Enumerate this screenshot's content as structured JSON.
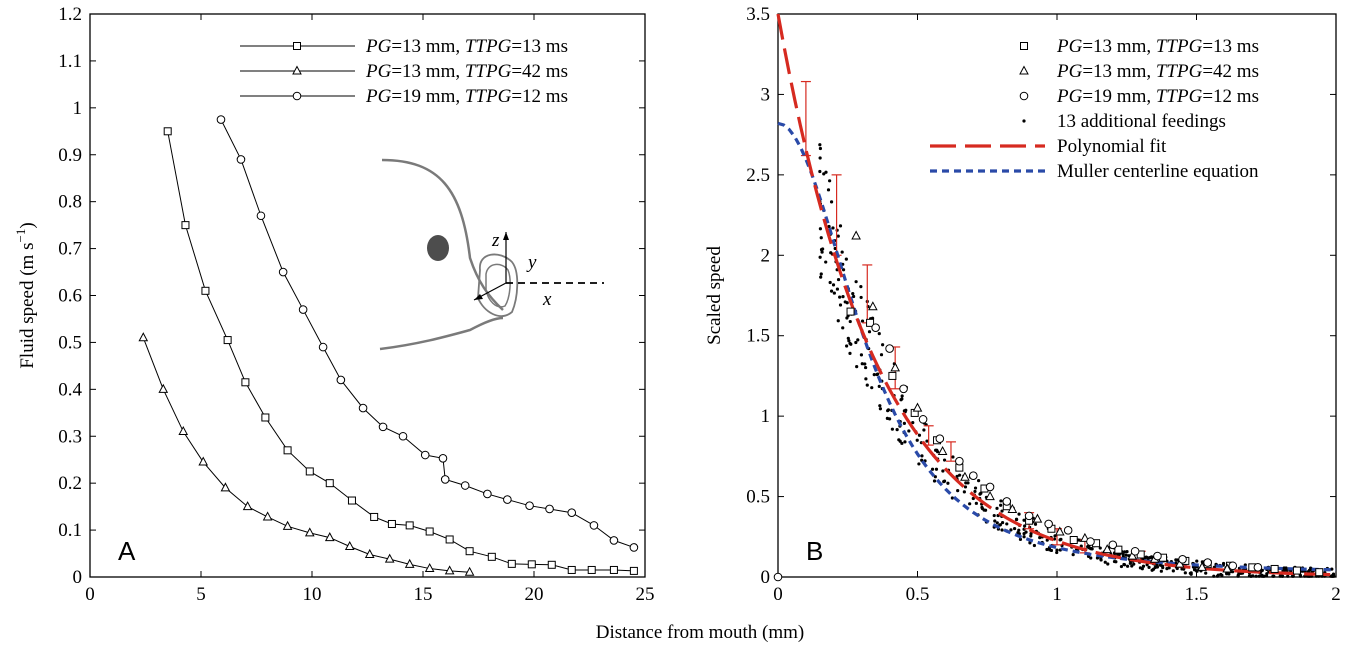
{
  "shared_xlabel": "Distance from mouth (mm)",
  "colors": {
    "poly": "#d62a20",
    "muller": "#2a4aa8",
    "ink": "#000000",
    "sketch": "#7a7a7a",
    "eye": "#4d4d4d"
  },
  "chart_data": [
    {
      "panel": "A",
      "type": "line",
      "xlabel": "",
      "ylabel": "Fluid speed (m s−1)",
      "ylabel_main": "Fluid speed (m s",
      "ylabel_sup": "−1",
      "ylabel_tail": ")",
      "xlim": [
        0,
        25
      ],
      "ylim": [
        0,
        1.2
      ],
      "xticks": [
        0,
        5,
        10,
        15,
        20,
        25
      ],
      "yticks": [
        0,
        0.1,
        0.2,
        0.3,
        0.4,
        0.5,
        0.6,
        0.7,
        0.8,
        0.9,
        1,
        1.1,
        1.2
      ],
      "legend_position": "top-right",
      "series": [
        {
          "name": "PG=13 mm, TTPG=13 ms",
          "name_parts": [
            "PG",
            "=13 mm, ",
            "TTPG",
            "=13 ms"
          ],
          "marker": "square",
          "x": [
            3.5,
            4.3,
            5.2,
            6.2,
            7.0,
            7.9,
            8.9,
            9.9,
            10.8,
            11.8,
            12.8,
            13.6,
            14.4,
            15.3,
            16.2,
            17.1,
            18.1,
            19.0,
            19.9,
            20.8,
            21.7,
            22.6,
            23.6,
            24.5
          ],
          "y": [
            0.95,
            0.75,
            0.61,
            0.505,
            0.415,
            0.34,
            0.27,
            0.225,
            0.2,
            0.163,
            0.128,
            0.113,
            0.11,
            0.097,
            0.08,
            0.055,
            0.043,
            0.028,
            0.027,
            0.026,
            0.015,
            0.015,
            0.015,
            0.013
          ]
        },
        {
          "name": "PG=13 mm, TTPG=42 ms",
          "name_parts": [
            "PG",
            "=13 mm, ",
            "TTPG",
            "=42 ms"
          ],
          "marker": "triangle",
          "x": [
            2.4,
            3.3,
            4.2,
            5.1,
            6.1,
            7.1,
            8.0,
            8.9,
            9.9,
            10.8,
            11.7,
            12.6,
            13.5,
            14.4,
            15.3,
            16.2,
            17.1
          ],
          "y": [
            0.51,
            0.4,
            0.31,
            0.245,
            0.19,
            0.15,
            0.128,
            0.108,
            0.094,
            0.084,
            0.065,
            0.048,
            0.038,
            0.027,
            0.018,
            0.013,
            0.01
          ]
        },
        {
          "name": "PG=19 mm, TTPG=12 ms",
          "name_parts": [
            "PG",
            "=19 mm, ",
            "TTPG",
            "=12 ms"
          ],
          "marker": "circle",
          "x": [
            5.9,
            6.8,
            7.7,
            8.7,
            9.6,
            10.5,
            11.3,
            12.3,
            13.2,
            14.1,
            15.1,
            15.9,
            16.0,
            16.9,
            17.9,
            18.8,
            19.8,
            20.7,
            21.7,
            22.7,
            23.6,
            24.5
          ],
          "y": [
            0.975,
            0.89,
            0.77,
            0.65,
            0.57,
            0.49,
            0.42,
            0.36,
            0.32,
            0.3,
            0.26,
            0.253,
            0.208,
            0.195,
            0.177,
            0.165,
            0.152,
            0.145,
            0.137,
            0.11,
            0.078,
            0.063
          ]
        }
      ],
      "inset_labels": {
        "z": "z",
        "y": "y",
        "x": "x"
      },
      "panel_label": "A"
    },
    {
      "panel": "B",
      "type": "scatter",
      "xlabel": "",
      "ylabel": "Scaled speed",
      "xlim": [
        0,
        2
      ],
      "ylim": [
        0,
        3.5
      ],
      "xticks": [
        0,
        0.5,
        1,
        1.5,
        2
      ],
      "yticks": [
        0,
        0.5,
        1,
        1.5,
        2,
        2.5,
        3,
        3.5
      ],
      "legend_position": "top-right",
      "series": [
        {
          "name": "PG=13 mm, TTPG=13 ms",
          "name_parts": [
            "PG",
            "=13 mm, ",
            "TTPG",
            "=13 ms"
          ],
          "marker": "square",
          "x": [
            0.26,
            0.33,
            0.41,
            0.49,
            0.57,
            0.65,
            0.74,
            0.82,
            0.9,
            0.98,
            1.06,
            1.14,
            1.22,
            1.3,
            1.38,
            1.46,
            1.54,
            1.62,
            1.7,
            1.78,
            1.86,
            1.94
          ],
          "y": [
            1.65,
            1.58,
            1.25,
            1.02,
            0.85,
            0.68,
            0.55,
            0.44,
            0.35,
            0.3,
            0.23,
            0.21,
            0.17,
            0.14,
            0.12,
            0.1,
            0.08,
            0.07,
            0.06,
            0.05,
            0.04,
            0.03
          ]
        },
        {
          "name": "PG=13 mm, TTPG=42 ms",
          "name_parts": [
            "PG",
            "=13 mm, ",
            "TTPG",
            "=42 ms"
          ],
          "marker": "triangle",
          "x": [
            0.28,
            0.34,
            0.42,
            0.5,
            0.59,
            0.67,
            0.76,
            0.84,
            0.93,
            1.01,
            1.1,
            1.18,
            1.27,
            1.35,
            1.44,
            1.52,
            1.61
          ],
          "y": [
            2.12,
            1.68,
            1.3,
            1.05,
            0.78,
            0.62,
            0.5,
            0.42,
            0.36,
            0.28,
            0.24,
            0.17,
            0.13,
            0.11,
            0.08,
            0.06,
            0.05
          ]
        },
        {
          "name": "PG=19 mm, TTPG=12 ms",
          "name_parts": [
            "PG",
            "=19 mm, ",
            "TTPG",
            "=12 ms"
          ],
          "marker": "circle",
          "x": [
            0.0,
            0.35,
            0.4,
            0.45,
            0.52,
            0.58,
            0.65,
            0.7,
            0.76,
            0.82,
            0.9,
            0.97,
            1.04,
            1.12,
            1.2,
            1.28,
            1.36,
            1.45,
            1.54,
            1.63,
            1.72
          ],
          "y": [
            0.0,
            1.55,
            1.42,
            1.17,
            0.98,
            0.86,
            0.72,
            0.63,
            0.56,
            0.47,
            0.38,
            0.33,
            0.29,
            0.22,
            0.2,
            0.16,
            0.13,
            0.11,
            0.09,
            0.07,
            0.06
          ]
        },
        {
          "name": "13 additional feedings",
          "marker": "dot",
          "x": [],
          "y": []
        }
      ],
      "fits": [
        {
          "name": "Polynomial fit",
          "style": "long-dash",
          "color": "#d62a20"
        },
        {
          "name": "Muller centerline equation",
          "style": "short-dash",
          "color": "#2a4aa8"
        }
      ],
      "errorbars": {
        "x": [
          0.1,
          0.21,
          0.32,
          0.42,
          0.54,
          0.62,
          0.9,
          1.0,
          1.1,
          1.3
        ],
        "center": [
          2.85,
          2.25,
          1.76,
          1.3,
          0.88,
          0.78,
          0.35,
          0.25,
          0.19,
          0.13
        ],
        "half_width": [
          0.23,
          0.25,
          0.18,
          0.13,
          0.06,
          0.06,
          0.05,
          0.05,
          0.04,
          0.03
        ]
      },
      "panel_label": "B"
    }
  ]
}
